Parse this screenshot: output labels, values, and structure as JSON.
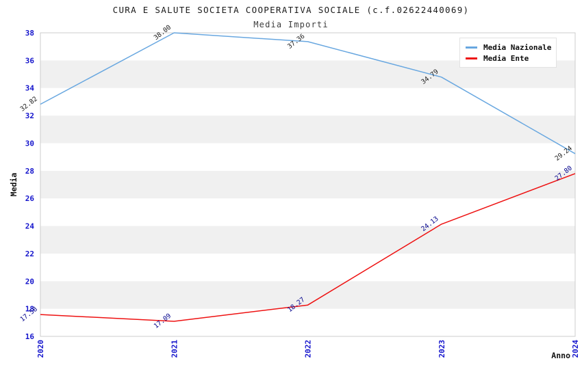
{
  "header": {
    "title": "CURA E SALUTE SOCIETA COOPERATIVA SOCIALE (c.f.02622440069)",
    "subtitle": "Media Importi"
  },
  "axes": {
    "y_label": "Media",
    "x_label": "Anno",
    "tick_color": "#1414cc",
    "y_ticks": [
      16,
      18,
      20,
      22,
      24,
      26,
      28,
      30,
      32,
      34,
      36,
      38
    ],
    "x_ticks": [
      "2020",
      "2021",
      "2022",
      "2023",
      "2024"
    ]
  },
  "legend": {
    "position": "upper right",
    "items": [
      "Media Nazionale",
      "Media Ente"
    ]
  },
  "chart_data": {
    "type": "line",
    "title": "CURA E SALUTE SOCIETA COOPERATIVA SOCIALE (c.f.02622440069)",
    "subtitle": "Media Importi",
    "xlabel": "Anno",
    "ylabel": "Media",
    "x": [
      2020,
      2021,
      2022,
      2023,
      2024
    ],
    "series": [
      {
        "name": "Media Nazionale",
        "color": "#68a7e0",
        "label_color": "#1a1a1a",
        "values": [
          32.82,
          38.0,
          37.36,
          34.79,
          29.24
        ]
      },
      {
        "name": "Media Ente",
        "color": "#ee1111",
        "label_color": "#00008b",
        "values": [
          17.58,
          17.09,
          18.27,
          24.13,
          27.8
        ]
      }
    ],
    "ylim": [
      16,
      38
    ],
    "ytick_step": 2,
    "grid": false,
    "band_colors": [
      "#ffffff",
      "#f0f0f0"
    ],
    "plot_border_color": "#cccccc",
    "legend_position": "upper right"
  }
}
